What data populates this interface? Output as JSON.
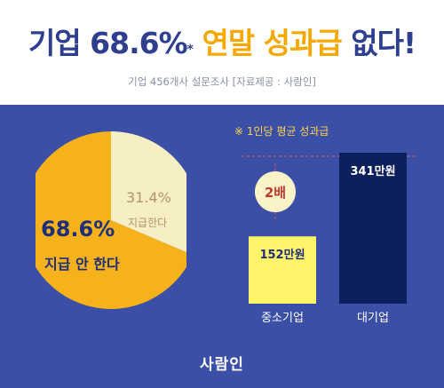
{
  "header": {
    "title_prefix": "기업 68.6%",
    "title_star": "*",
    "title_highlight": "연말 성과급",
    "title_suffix": "없다!",
    "subtitle": "기업 456개사 설문조사 [자료제공 : 사람인]"
  },
  "colors": {
    "background": "#3b4fa6",
    "pie_major": "#f7b11a",
    "pie_minor": "#f6efc4",
    "bar_small": "#fff46a",
    "bar_large": "#0c1f5e",
    "accent": "#f5a800"
  },
  "chart_data": [
    {
      "type": "pie",
      "slices": [
        {
          "label": "지급 안 한다",
          "value": 68.6,
          "value_label": "68.6%"
        },
        {
          "label": "지급한다",
          "value": 31.4,
          "value_label": "31.4%"
        }
      ]
    },
    {
      "type": "bar",
      "title": "※ 1인당 평균 성과급",
      "categories": [
        "중소기업",
        "대기업"
      ],
      "values": [
        152,
        341
      ],
      "value_labels": [
        "152만원",
        "341만원"
      ],
      "ratio_label": "2배"
    }
  ],
  "footer": {
    "brand": "사람인"
  }
}
